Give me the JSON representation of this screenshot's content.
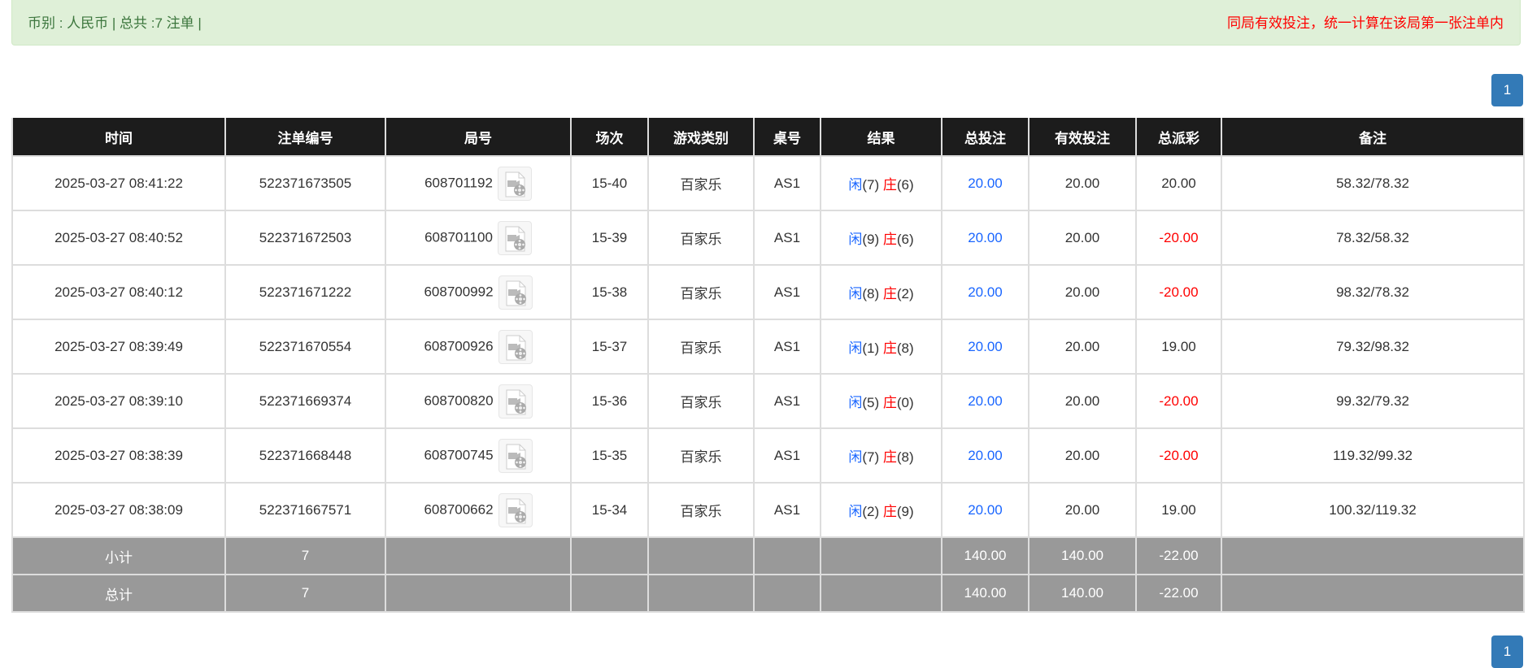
{
  "alert": {
    "summary": "币别 : 人民币 | 总共 :7 注单 |",
    "notice": "同局有效投注，统一计算在该局第一张注单内"
  },
  "pagination": {
    "current_page": "1"
  },
  "colors": {
    "player": "#1a66ff",
    "banker": "#ff0000",
    "negative": "#ff0000",
    "header_bg": "#1c1c1c",
    "summary_bg": "#999999",
    "page_button": "#337ab7"
  },
  "table": {
    "headers": [
      "时间",
      "注单编号",
      "局号",
      "场次",
      "游戏类别",
      "桌号",
      "结果",
      "总投注",
      "有效投注",
      "总派彩",
      "备注"
    ],
    "player_label": "闲",
    "banker_label": "庄",
    "replay_icon": "video-file-icon",
    "rows": [
      {
        "time": "2025-03-27 08:41:22",
        "bet_id": "522371673505",
        "round_id": "608701192",
        "shoe": "15-40",
        "game": "百家乐",
        "table": "AS1",
        "player": "(7)",
        "banker": "(6)",
        "total_bet": "20.00",
        "valid_bet": "20.00",
        "payout": "20.00",
        "remark": "58.32/78.32"
      },
      {
        "time": "2025-03-27 08:40:52",
        "bet_id": "522371672503",
        "round_id": "608701100",
        "shoe": "15-39",
        "game": "百家乐",
        "table": "AS1",
        "player": "(9)",
        "banker": "(6)",
        "total_bet": "20.00",
        "valid_bet": "20.00",
        "payout": "-20.00",
        "remark": "78.32/58.32"
      },
      {
        "time": "2025-03-27 08:40:12",
        "bet_id": "522371671222",
        "round_id": "608700992",
        "shoe": "15-38",
        "game": "百家乐",
        "table": "AS1",
        "player": "(8)",
        "banker": "(2)",
        "total_bet": "20.00",
        "valid_bet": "20.00",
        "payout": "-20.00",
        "remark": "98.32/78.32"
      },
      {
        "time": "2025-03-27 08:39:49",
        "bet_id": "522371670554",
        "round_id": "608700926",
        "shoe": "15-37",
        "game": "百家乐",
        "table": "AS1",
        "player": "(1)",
        "banker": "(8)",
        "total_bet": "20.00",
        "valid_bet": "20.00",
        "payout": "19.00",
        "remark": "79.32/98.32"
      },
      {
        "time": "2025-03-27 08:39:10",
        "bet_id": "522371669374",
        "round_id": "608700820",
        "shoe": "15-36",
        "game": "百家乐",
        "table": "AS1",
        "player": "(5)",
        "banker": "(0)",
        "total_bet": "20.00",
        "valid_bet": "20.00",
        "payout": "-20.00",
        "remark": "99.32/79.32"
      },
      {
        "time": "2025-03-27 08:38:39",
        "bet_id": "522371668448",
        "round_id": "608700745",
        "shoe": "15-35",
        "game": "百家乐",
        "table": "AS1",
        "player": "(7)",
        "banker": "(8)",
        "total_bet": "20.00",
        "valid_bet": "20.00",
        "payout": "-20.00",
        "remark": "119.32/99.32"
      },
      {
        "time": "2025-03-27 08:38:09",
        "bet_id": "522371667571",
        "round_id": "608700662",
        "shoe": "15-34",
        "game": "百家乐",
        "table": "AS1",
        "player": "(2)",
        "banker": "(9)",
        "total_bet": "20.00",
        "valid_bet": "20.00",
        "payout": "19.00",
        "remark": "100.32/119.32"
      }
    ],
    "subtotal": {
      "label": "小计",
      "count": "7",
      "total_bet": "140.00",
      "valid_bet": "140.00",
      "payout": "-22.00"
    },
    "grand_total": {
      "label": "总计",
      "count": "7",
      "total_bet": "140.00",
      "valid_bet": "140.00",
      "payout": "-22.00"
    }
  }
}
